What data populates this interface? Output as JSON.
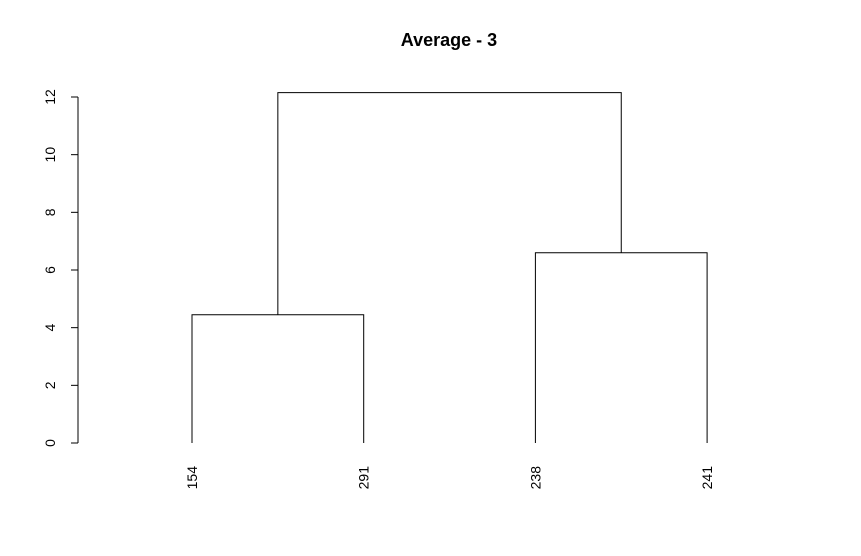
{
  "chart_data": {
    "type": "dendrogram",
    "title": "Average - 3",
    "xlabel": "",
    "ylabel": "",
    "ylim": [
      0,
      12
    ],
    "yticks": [
      0,
      2,
      4,
      6,
      8,
      10,
      12
    ],
    "grid": false,
    "legend": "none",
    "line_color": "#000000",
    "leaves": [
      "154",
      "291",
      "238",
      "241"
    ],
    "merges": [
      {
        "left": "154",
        "right": "291",
        "height": 4.45
      },
      {
        "left": "238",
        "right": "241",
        "height": 6.6
      },
      {
        "left": "154+291",
        "right": "238+241",
        "height": 12.15
      }
    ]
  }
}
